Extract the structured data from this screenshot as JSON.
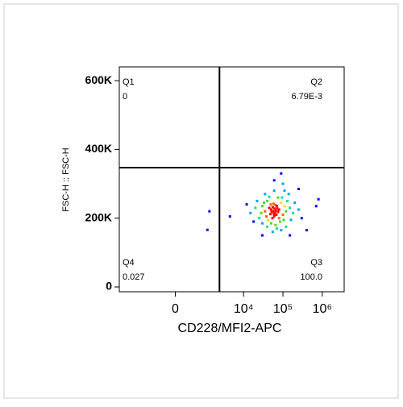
{
  "chart_data": {
    "type": "scatter",
    "xlabel": "CD228/MFI2-APC",
    "ylabel": "FSC-H :: FSC-H",
    "xscale": "biexponential",
    "xlim": [
      -8200,
      3600000
    ],
    "xticks": [
      0,
      {
        "value": 10000,
        "label": "10⁴"
      },
      {
        "value": 100000,
        "label": "10⁵"
      },
      {
        "value": 1000000,
        "label": "10⁶"
      }
    ],
    "ylim": [
      -14000,
      640000
    ],
    "yticks": [
      0,
      {
        "value": 200000,
        "label": "200K"
      },
      {
        "value": 400000,
        "label": "400K"
      },
      {
        "value": 600000,
        "label": "600K"
      }
    ],
    "gates": {
      "x": 6470,
      "y": 346900
    },
    "quadrants": [
      {
        "name": "Q1",
        "value": 0,
        "corner": "top-left"
      },
      {
        "name": "Q2",
        "value": 0.00679,
        "label": "6.79E-3",
        "corner": "top-right"
      },
      {
        "name": "Q3",
        "value": 100,
        "label": "100.0",
        "corner": "bottom-right"
      },
      {
        "name": "Q4",
        "value": 0.027,
        "corner": "bottom-left"
      }
    ],
    "series": [
      {
        "x": [
          57000,
          62000,
          50000,
          68000,
          55000,
          72000,
          48000,
          60000,
          65000,
          52000,
          75000,
          58000,
          45000,
          80000,
          54000,
          66000,
          61000,
          59000,
          70000,
          49000,
          40000,
          90000,
          35000,
          100000,
          42000,
          85000,
          30000,
          110000,
          38000,
          95000,
          75000,
          50000,
          120000,
          28000,
          65000,
          105000,
          45000,
          33000,
          130000,
          80000,
          25000,
          20000,
          150000,
          180000,
          140000,
          60000,
          70000,
          40000,
          22000,
          160000,
          90000,
          30000,
          200000,
          110000,
          55000,
          15000,
          250000,
          35000,
          120000,
          18000,
          12000,
          8000,
          300000,
          700000,
          800000,
          400000,
          100000,
          60000,
          30000,
          150000,
          5000,
          250000,
          90000,
          4700
        ],
        "values": [
          220000,
          215000,
          225000,
          210000,
          232000,
          228000,
          212000,
          205000,
          238000,
          218000,
          218000,
          242000,
          230000,
          225000,
          200000,
          222000,
          228000,
          212000,
          235000,
          240000,
          250000,
          245000,
          220000,
          210000,
          195000,
          190000,
          235000,
          235000,
          205000,
          260000,
          260000,
          185000,
          220000,
          215000,
          180000,
          195000,
          262000,
          245000,
          250000,
          200000,
          200000,
          230000,
          230000,
          215000,
          270000,
          280000,
          170000,
          175000,
          250000,
          195000,
          165000,
          185000,
          245000,
          280000,
          160000,
          215000,
          225000,
          270000,
          175000,
          190000,
          240000,
          205000,
          200000,
          235000,
          255000,
          165000,
          300000,
          310000,
          150000,
          150000,
          220000,
          285000,
          330000,
          166000
        ]
      }
    ]
  }
}
